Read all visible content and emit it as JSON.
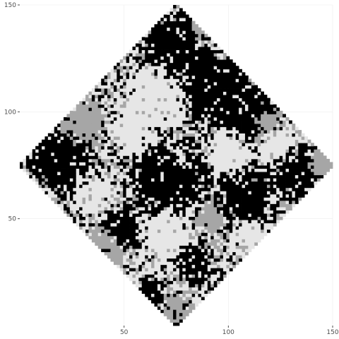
{
  "chart_data": {
    "type": "heatmap",
    "title": "",
    "xlabel": "",
    "ylabel": "",
    "xlim": [
      0,
      150
    ],
    "ylim": [
      0,
      150
    ],
    "x_ticks": [
      50,
      100,
      150
    ],
    "y_ticks": [
      50,
      100,
      150
    ],
    "x_tick_labels": [
      "50",
      "100",
      "150"
    ],
    "y_tick_labels": [
      "50",
      "100",
      "150"
    ],
    "grid": true,
    "legend": "none",
    "domain_shape": "diamond",
    "domain_corners": [
      [
        75,
        0
      ],
      [
        150,
        75
      ],
      [
        75,
        150
      ],
      [
        0,
        75
      ]
    ],
    "cell_size": 1.5,
    "classes": [
      {
        "level": 1,
        "color": "#e6e6e6"
      },
      {
        "level": 2,
        "color": "#a6a6a6"
      },
      {
        "level": 3,
        "color": "#000000"
      }
    ],
    "regions": [
      {
        "level": 3,
        "cx": 75,
        "cy": 130,
        "r": 14
      },
      {
        "level": 3,
        "cx": 95,
        "cy": 112,
        "r": 16
      },
      {
        "level": 3,
        "cx": 110,
        "cy": 100,
        "r": 12
      },
      {
        "level": 3,
        "cx": 20,
        "cy": 77,
        "r": 13
      },
      {
        "level": 3,
        "cx": 72,
        "cy": 70,
        "r": 16
      },
      {
        "level": 3,
        "cx": 108,
        "cy": 60,
        "r": 12
      },
      {
        "level": 3,
        "cx": 132,
        "cy": 72,
        "r": 10
      },
      {
        "level": 3,
        "cx": 50,
        "cy": 45,
        "r": 8
      },
      {
        "level": 3,
        "cx": 82,
        "cy": 30,
        "r": 8
      },
      {
        "level": 3,
        "cx": 62,
        "cy": 15,
        "r": 6
      },
      {
        "level": 1,
        "cx": 65,
        "cy": 107,
        "r": 13
      },
      {
        "level": 1,
        "cx": 55,
        "cy": 90,
        "r": 9
      },
      {
        "level": 1,
        "cx": 100,
        "cy": 82,
        "r": 9
      },
      {
        "level": 1,
        "cx": 125,
        "cy": 85,
        "r": 8
      },
      {
        "level": 1,
        "cx": 70,
        "cy": 42,
        "r": 11
      },
      {
        "level": 1,
        "cx": 35,
        "cy": 62,
        "r": 8
      },
      {
        "level": 1,
        "cx": 110,
        "cy": 42,
        "r": 8
      },
      {
        "level": 1,
        "cx": 75,
        "cy": 80,
        "r": 6
      },
      {
        "level": 2,
        "cx": 30,
        "cy": 95,
        "r": 9
      },
      {
        "level": 2,
        "cx": 40,
        "cy": 35,
        "r": 9
      },
      {
        "level": 2,
        "cx": 118,
        "cy": 95,
        "r": 8
      },
      {
        "level": 2,
        "cx": 145,
        "cy": 75,
        "r": 6
      },
      {
        "level": 2,
        "cx": 75,
        "cy": 8,
        "r": 6
      },
      {
        "level": 2,
        "cx": 88,
        "cy": 138,
        "r": 5
      },
      {
        "level": 2,
        "cx": 92,
        "cy": 50,
        "r": 6
      }
    ]
  }
}
